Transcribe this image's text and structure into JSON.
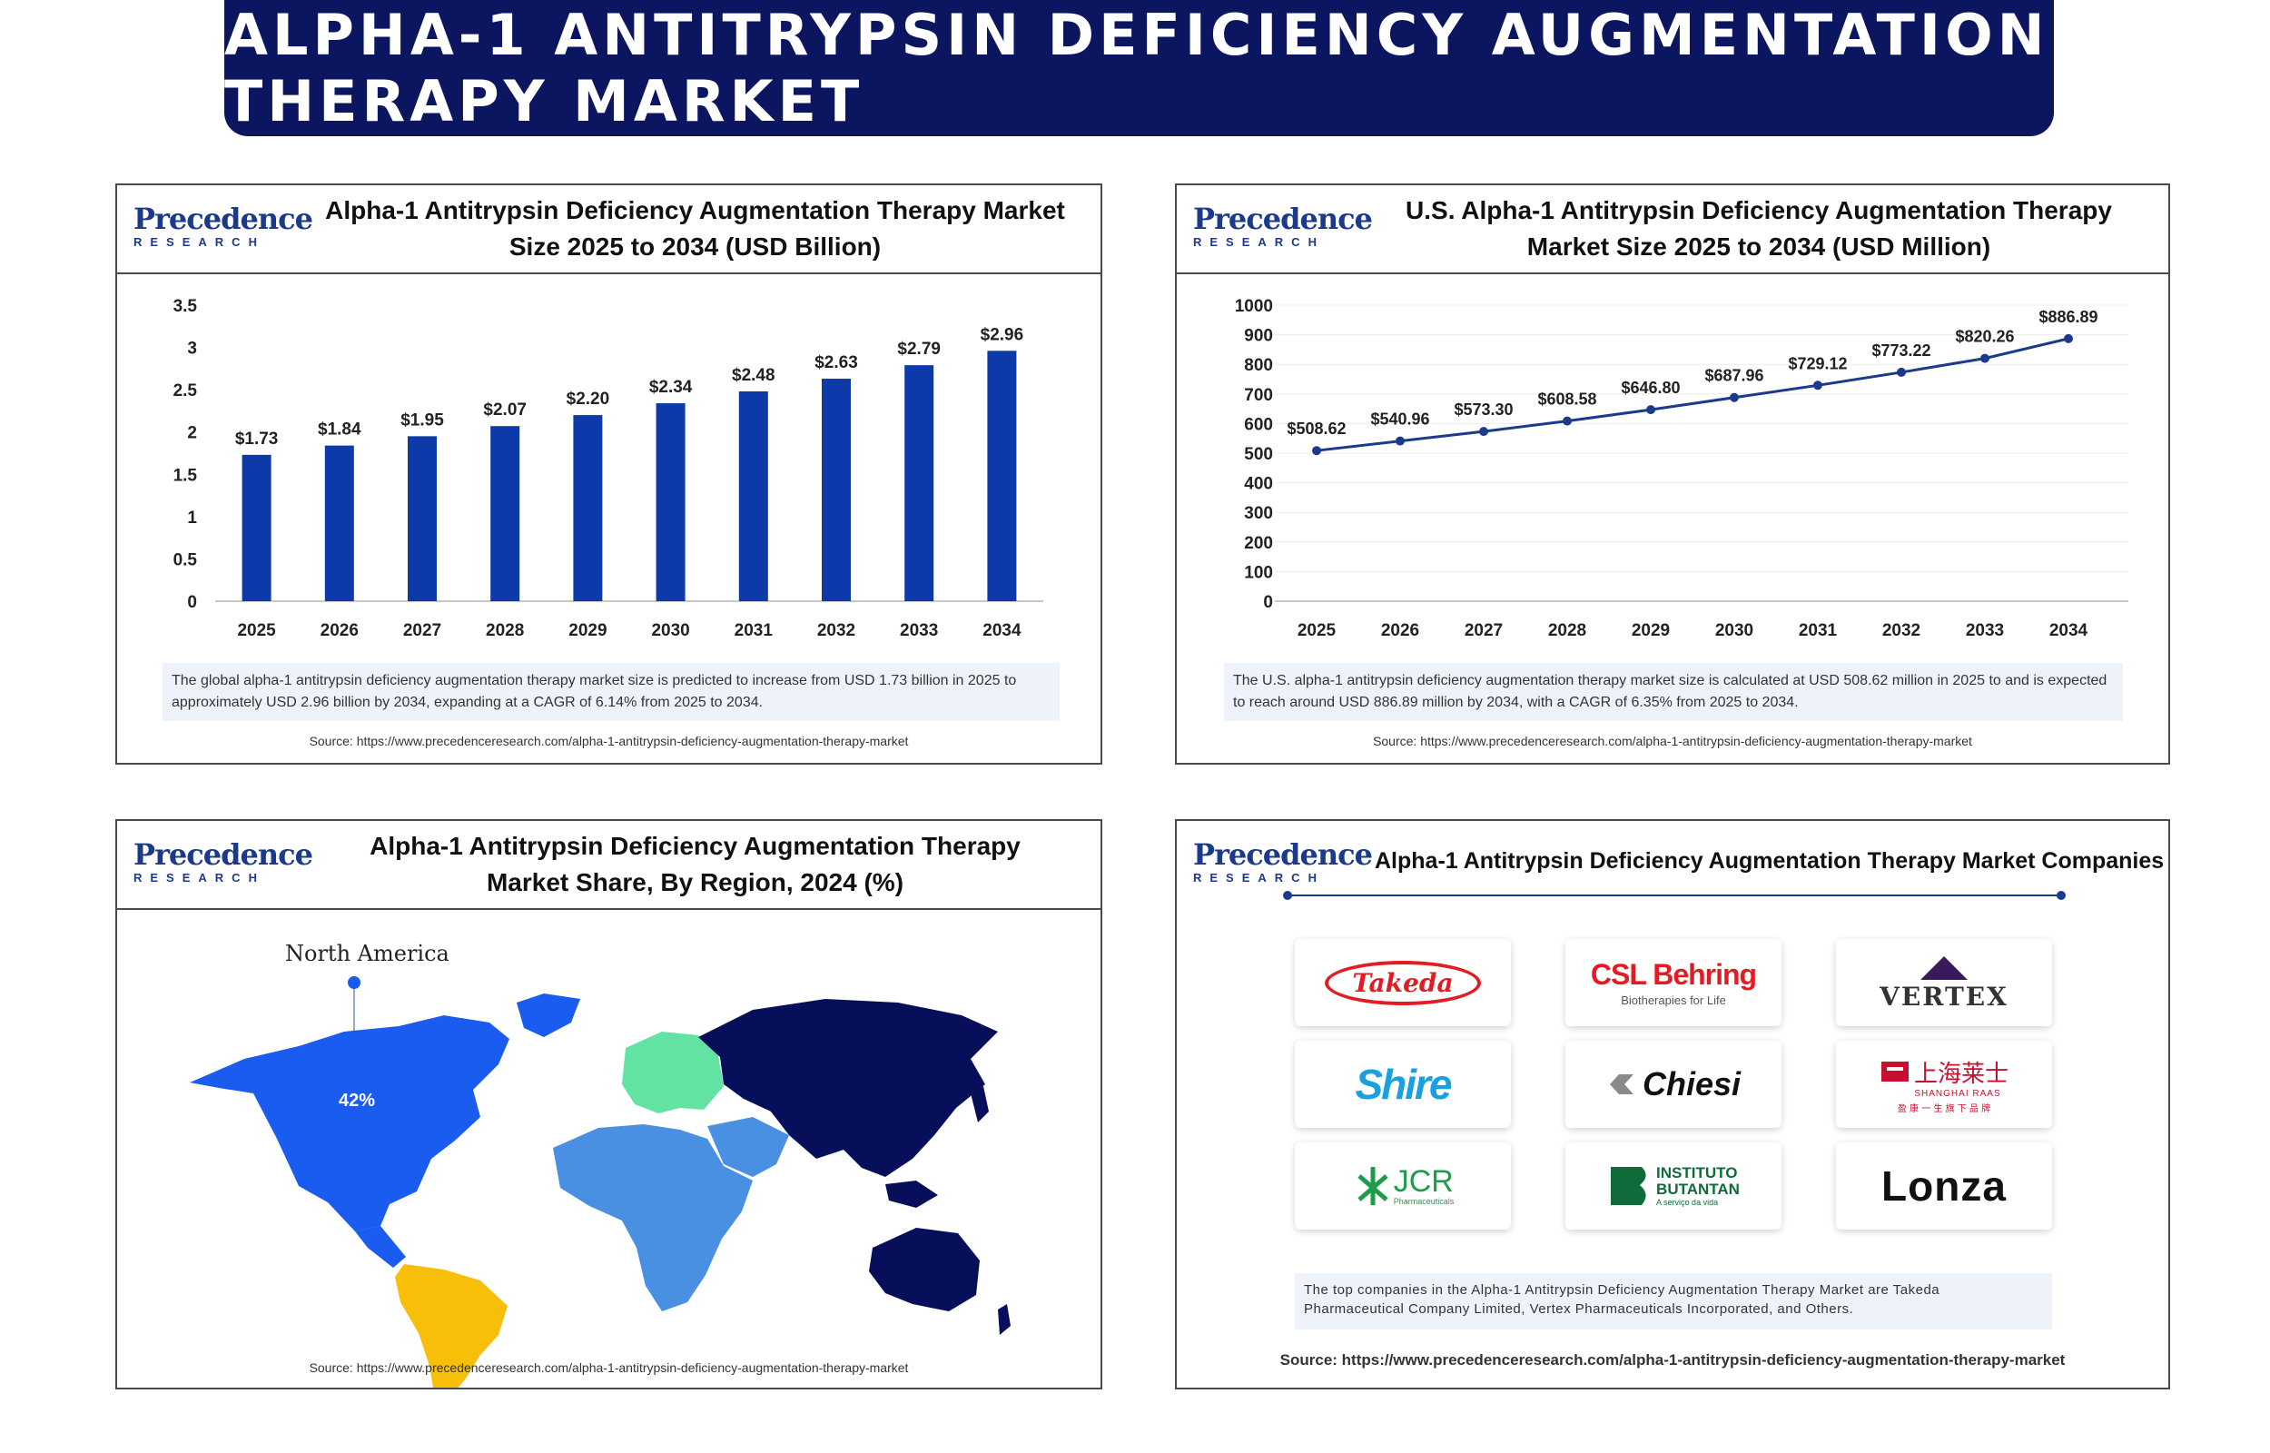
{
  "banner": {
    "title": "ALPHA-1 ANTITRYPSIN DEFICIENCY AUGMENTATION THERAPY MARKET"
  },
  "logo": {
    "main": "Precedence",
    "sub": "RESEARCH"
  },
  "source_url": "Source: https://www.precedenceresearch.com/alpha-1-antitrypsin-deficiency-augmentation-therapy-market",
  "panel1": {
    "title_line1": "Alpha-1 Antitrypsin Deficiency Augmentation Therapy Market",
    "title_line2": "Size 2025 to 2034 (USD Billion)",
    "note": "The global alpha-1 antitrypsin deficiency augmentation therapy market size is predicted to increase from USD 1.73 billion in 2025 to approximately USD 2.96 billion by 2034, expanding at a CAGR of 6.14% from 2025 to 2034."
  },
  "panel2": {
    "title_line1": "U.S. Alpha-1 Antitrypsin Deficiency Augmentation Therapy",
    "title_line2": "Market  Size 2025 to 2034 (USD Million)",
    "note": "The U.S. alpha-1 antitrypsin deficiency augmentation therapy market size is calculated at USD 508.62 million in 2025 to and is expected to reach around USD 886.89 million by 2034, with a CAGR of 6.35% from 2025 to 2034."
  },
  "panel3": {
    "title_line1": "Alpha-1 Antitrypsin Deficiency Augmentation Therapy",
    "title_line2": "Market Share, By Region, 2024 (%)",
    "region_label": "North America",
    "region_value": "42%"
  },
  "panel4": {
    "title": "Alpha-1 Antitrypsin Deficiency Augmentation Therapy Market Companies",
    "companies": [
      {
        "name": "Takeda"
      },
      {
        "name": "CSL Behring",
        "tagline": "Biotherapies for Life"
      },
      {
        "name": "VERTEX"
      },
      {
        "name": "Shire"
      },
      {
        "name": "Chiesi"
      },
      {
        "name": "上海莱士",
        "sub": "SHANGHAI RAAS",
        "sub2": "盈 康 一 生 旗 下 品 牌"
      },
      {
        "name": "JCR",
        "sub": "Pharmaceuticals"
      },
      {
        "name": "INSTITUTO",
        "sub": "BUTANTAN",
        "sub2": "A serviço da vida"
      },
      {
        "name": "Lonza"
      }
    ],
    "note": "The top companies in the Alpha-1 Antitrypsin Deficiency Augmentation Therapy Market are Takeda Pharmaceutical Company Limited, Vertex Pharmaceuticals Incorporated, and Others."
  },
  "colors": {
    "banner": "#0b1560",
    "bar": "#0d3aa8",
    "line": "#1c3a8c",
    "na": "#1a5cf0",
    "sa": "#f7be0a",
    "europe": "#62e3a3",
    "africa": "#4a90e2",
    "asia": "#080f5a"
  },
  "chart_data": [
    {
      "type": "bar",
      "title": "Alpha-1 Antitrypsin Deficiency Augmentation Therapy Market Size 2025 to 2034 (USD Billion)",
      "categories": [
        "2025",
        "2026",
        "2027",
        "2028",
        "2029",
        "2030",
        "2031",
        "2032",
        "2033",
        "2034"
      ],
      "values": [
        1.73,
        1.84,
        1.95,
        2.07,
        2.2,
        2.34,
        2.48,
        2.63,
        2.79,
        2.96
      ],
      "labels": [
        "$1.73",
        "$1.84",
        "$1.95",
        "$2.07",
        "$2.20",
        "$2.34",
        "$2.48",
        "$2.63",
        "$2.79",
        "$2.96"
      ],
      "yticks": [
        "0",
        "0.5",
        "1",
        "1.5",
        "2",
        "2.5",
        "3",
        "3.5"
      ],
      "ylim": [
        0,
        3.5
      ],
      "xlabel": "",
      "ylabel": ""
    },
    {
      "type": "line",
      "title": "U.S. Alpha-1 Antitrypsin Deficiency Augmentation Therapy Market Size 2025 to 2034 (USD Million)",
      "categories": [
        "2025",
        "2026",
        "2027",
        "2028",
        "2029",
        "2030",
        "2031",
        "2032",
        "2033",
        "2034"
      ],
      "values": [
        508.62,
        540.96,
        573.3,
        608.58,
        646.8,
        687.96,
        729.12,
        773.22,
        820.26,
        886.89
      ],
      "labels": [
        "$508.62",
        "$540.96",
        "$573.30",
        "$608.58",
        "$646.80",
        "$687.96",
        "$729.12",
        "$773.22",
        "$820.26",
        "$886.89"
      ],
      "yticks": [
        "0",
        "100",
        "200",
        "300",
        "400",
        "500",
        "600",
        "700",
        "800",
        "900",
        "1000"
      ],
      "ylim": [
        0,
        1000
      ],
      "xlabel": "",
      "ylabel": ""
    }
  ]
}
